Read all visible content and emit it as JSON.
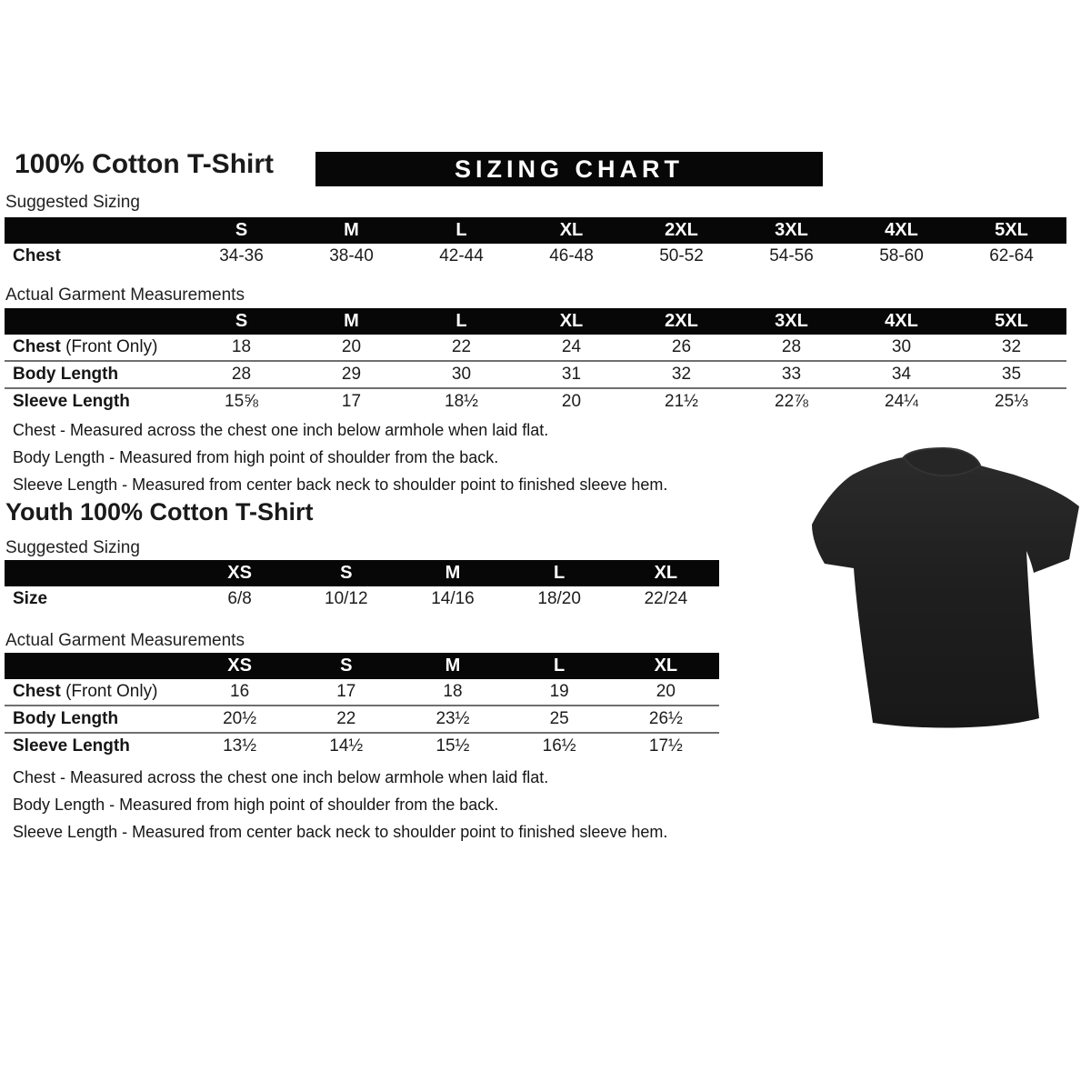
{
  "banner": {
    "label": "SIZING CHART"
  },
  "colors": {
    "bar": "#070707",
    "separator": "#6f6f6f",
    "shirt": "#1e1e1e"
  },
  "adult": {
    "title": "100% Cotton T-Shirt",
    "suggested_label": "Suggested Sizing",
    "actual_label": "Actual Garment Measurements",
    "suggested_table": {
      "sizes": [
        "S",
        "M",
        "L",
        "XL",
        "2XL",
        "3XL",
        "4XL",
        "5XL"
      ],
      "rows": [
        {
          "label": "Chest",
          "suffix": "",
          "values": [
            "34-36",
            "38-40",
            "42-44",
            "46-48",
            "50-52",
            "54-56",
            "58-60",
            "62-64"
          ]
        }
      ]
    },
    "actual_table": {
      "sizes": [
        "S",
        "M",
        "L",
        "XL",
        "2XL",
        "3XL",
        "4XL",
        "5XL"
      ],
      "rows": [
        {
          "label": "Chest",
          "suffix": " (Front Only)",
          "values": [
            "18",
            "20",
            "22",
            "24",
            "26",
            "28",
            "30",
            "32"
          ]
        },
        {
          "label": "Body Length",
          "suffix": "",
          "values": [
            "28",
            "29",
            "30",
            "31",
            "32",
            "33",
            "34",
            "35"
          ]
        },
        {
          "label": "Sleeve Length",
          "suffix": "",
          "values": [
            "15⅝",
            "17",
            "18½",
            "20",
            "21½",
            "22⅞",
            "24¼",
            "25⅓"
          ]
        }
      ]
    },
    "notes": [
      "Chest - Measured across the chest one inch below armhole when laid flat.",
      "Body Length - Measured from high point of shoulder from the back.",
      "Sleeve Length - Measured from center back neck to shoulder point to finished sleeve hem."
    ]
  },
  "youth": {
    "title": "Youth 100% Cotton T-Shirt",
    "suggested_label": "Suggested Sizing",
    "actual_label": "Actual Garment Measurements",
    "suggested_table": {
      "sizes": [
        "XS",
        "S",
        "M",
        "L",
        "XL"
      ],
      "rows": [
        {
          "label": "Size",
          "suffix": "",
          "values": [
            "6/8",
            "10/12",
            "14/16",
            "18/20",
            "22/24"
          ]
        }
      ]
    },
    "actual_table": {
      "sizes": [
        "XS",
        "S",
        "M",
        "L",
        "XL"
      ],
      "rows": [
        {
          "label": "Chest",
          "suffix": " (Front Only)",
          "values": [
            "16",
            "17",
            "18",
            "19",
            "20"
          ]
        },
        {
          "label": "Body Length",
          "suffix": "",
          "values": [
            "20½",
            "22",
            "23½",
            "25",
            "26½"
          ]
        },
        {
          "label": "Sleeve Length",
          "suffix": "",
          "values": [
            "13½",
            "14½",
            "15½",
            "16½",
            "17½"
          ]
        }
      ]
    },
    "notes": [
      "Chest - Measured across the chest one inch below armhole when laid flat.",
      "Body Length - Measured from high point of shoulder from the back.",
      "Sleeve Length - Measured from center back neck to shoulder point to finished sleeve hem."
    ]
  },
  "tshirt_image": {
    "name": "black-tshirt-photo"
  }
}
